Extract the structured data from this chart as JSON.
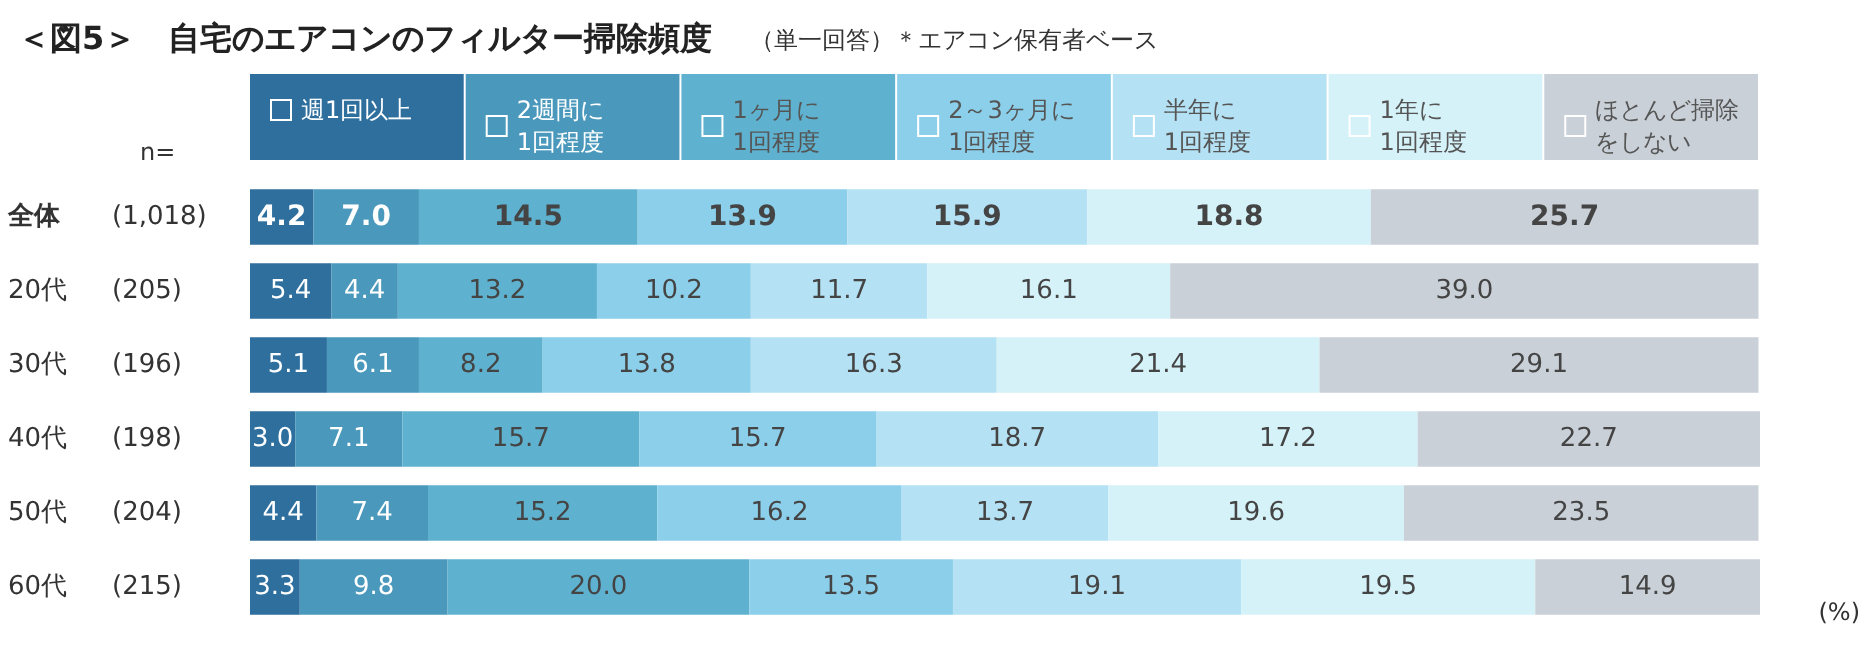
{
  "chart_data": {
    "type": "bar",
    "orientation": "horizontal",
    "stacked": true,
    "title": "＜図5＞　自宅のエアコンのフィルター掃除頻度",
    "subtitle": "（単一回答）＊エアコン保有者ベース",
    "categories": [
      "全体 (1,018)",
      "20代 (205)",
      "30代 (196)",
      "40代 (198)",
      "50代 (204)",
      "60代 (215)"
    ],
    "series": [
      {
        "name": "週1回以上",
        "color": "#2e6f9e",
        "values": [
          4.2,
          5.4,
          5.1,
          3.0,
          4.4,
          3.3
        ],
        "value_labels": [
          "4.2",
          "5.4",
          "5.1",
          "3.0",
          "4.4",
          "3.3"
        ]
      },
      {
        "name": "2週間に1回程度",
        "color": "#4a98bb",
        "values": [
          7.0,
          4.4,
          6.1,
          7.1,
          7.4,
          9.8
        ],
        "value_labels": [
          "7.0",
          "4.4",
          "6.1",
          "7.1",
          "7.4",
          "9.8"
        ]
      },
      {
        "name": "1ヶ月に1回程度",
        "color": "#5fb2cf",
        "values": [
          14.5,
          13.2,
          8.2,
          15.7,
          15.2,
          20.0
        ],
        "value_labels": [
          "14.5",
          "13.2",
          "8.2",
          "15.7",
          "15.2",
          "20.0"
        ]
      },
      {
        "name": "2～3ヶ月に1回程度",
        "color": "#8ccfea",
        "values": [
          13.9,
          10.2,
          13.8,
          15.7,
          16.2,
          13.5
        ],
        "value_labels": [
          "13.9",
          "10.2",
          "13.8",
          "15.7",
          "16.2",
          "13.5"
        ]
      },
      {
        "name": "半年に1回程度",
        "color": "#b4e1f3",
        "values": [
          15.9,
          11.7,
          16.3,
          18.7,
          13.7,
          19.1
        ],
        "value_labels": [
          "15.9",
          "11.7",
          "16.3",
          "18.7",
          "13.7",
          "19.1"
        ]
      },
      {
        "name": "1年に1回程度",
        "color": "#d5f2f9",
        "values": [
          18.8,
          16.1,
          21.4,
          17.2,
          19.6,
          19.5
        ],
        "value_labels": [
          "18.8",
          "16.1",
          "21.4",
          "17.2",
          "19.6",
          "19.5"
        ]
      },
      {
        "name": "ほとんど掃除をしない",
        "color": "#c9d0d8",
        "values": [
          25.7,
          39.0,
          29.1,
          22.7,
          23.5,
          14.9
        ],
        "value_labels": [
          "25.7",
          "39.0",
          "29.1",
          "22.7",
          "23.5",
          "14.9"
        ]
      }
    ],
    "legend": "top",
    "grid": false,
    "annotations": [
      "n=",
      "(%)"
    ]
  }
}
